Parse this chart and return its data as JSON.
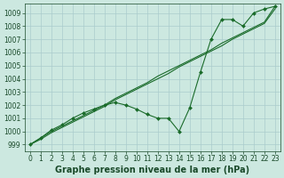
{
  "xlabel": "Graphe pression niveau de la mer (hPa)",
  "ylabel": "",
  "bg_color": "#cce8e0",
  "grid_color": "#aacccc",
  "line_color": "#1a6b2a",
  "marker_color": "#1a6b2a",
  "text_color": "#1a4a2a",
  "ylim": [
    998.5,
    1009.7
  ],
  "xlim": [
    -0.5,
    23.5
  ],
  "yticks": [
    999,
    1000,
    1001,
    1002,
    1003,
    1004,
    1005,
    1006,
    1007,
    1008,
    1009
  ],
  "xticks": [
    0,
    1,
    2,
    3,
    4,
    5,
    6,
    7,
    8,
    9,
    10,
    11,
    12,
    13,
    14,
    15,
    16,
    17,
    18,
    19,
    20,
    21,
    22,
    23
  ],
  "series": [
    [
      999.0,
      999.4,
      999.9,
      1000.3,
      1000.7,
      1001.1,
      1001.5,
      1001.9,
      1002.4,
      1002.8,
      1003.2,
      1003.6,
      1004.0,
      1004.4,
      1004.9,
      1005.3,
      1005.7,
      1006.1,
      1006.5,
      1007.0,
      1007.4,
      1007.8,
      1008.2,
      1009.3
    ],
    [
      999.0,
      999.5,
      1000.0,
      1000.4,
      1000.8,
      1001.2,
      1001.6,
      1002.0,
      1002.5,
      1002.9,
      1003.3,
      1003.7,
      1004.2,
      1004.6,
      1005.0,
      1005.4,
      1005.8,
      1006.2,
      1006.7,
      1007.1,
      1007.5,
      1007.9,
      1008.3,
      1009.5
    ],
    [
      999.0,
      999.5,
      1000.1,
      1000.5,
      1001.0,
      1001.4,
      1001.7,
      1002.0,
      1002.2,
      1002.0,
      1001.7,
      1001.3,
      1001.0,
      1001.0,
      1000.0,
      1001.8,
      1004.5,
      1007.0,
      1008.5,
      1008.5,
      1008.0,
      1009.0,
      1009.3,
      1009.5
    ]
  ],
  "marker": "D",
  "markersize": 2.0,
  "linewidth": 0.8,
  "xlabel_fontsize": 7,
  "tick_fontsize": 5.5,
  "figsize": [
    3.2,
    2.0
  ],
  "dpi": 100
}
